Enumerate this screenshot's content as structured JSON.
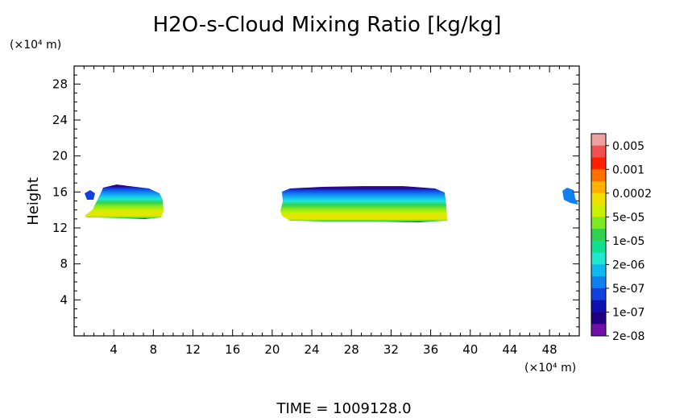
{
  "chart_data": {
    "type": "heatmap",
    "title": "H2O-s-Cloud Mixing Ratio [kg/kg]",
    "xlabel": "",
    "ylabel": "Height",
    "x_unit_label": "(×10⁴ m)",
    "y_unit_label": "(×10⁴ m)",
    "xlim": [
      0,
      51
    ],
    "ylim": [
      0,
      30
    ],
    "x_ticks": [
      "4",
      "8",
      "12",
      "16",
      "20",
      "24",
      "28",
      "32",
      "36",
      "40",
      "44",
      "48"
    ],
    "y_ticks": [
      "4",
      "8",
      "12",
      "16",
      "20",
      "24",
      "28"
    ],
    "footer": "TIME  =  1009128.0",
    "colorbar": {
      "labels": [
        "0.005",
        "0.001",
        "0.0002",
        "5e-05",
        "1e-05",
        "2e-06",
        "5e-07",
        "1e-07",
        "2e-08"
      ],
      "colors": [
        "#f0a0a0",
        "#f05050",
        "#ff2000",
        "#ff7000",
        "#ffb000",
        "#f0e000",
        "#c8f000",
        "#80e820",
        "#30d050",
        "#10e090",
        "#20e8d0",
        "#10b8f0",
        "#1080f0",
        "#1040e0",
        "#1010b0",
        "#200080",
        "#7010a8"
      ]
    },
    "regions": [
      {
        "name": "cloud-left",
        "x": [
          1.5,
          9.5
        ],
        "y": [
          12.9,
          16.6
        ]
      },
      {
        "name": "cloud-center",
        "x": [
          21,
          37.5
        ],
        "y": [
          12.7,
          16.4
        ]
      },
      {
        "name": "cloud-right",
        "x": [
          49.2,
          50.5
        ],
        "y": [
          14.8,
          16.2
        ]
      }
    ]
  }
}
